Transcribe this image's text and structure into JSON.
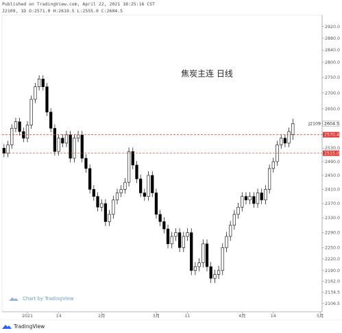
{
  "header": {
    "published": "Published on TradingView.com, April 22, 2021 18:25:16 CST",
    "ohlc_line": "J2109, 1D O:2571.0 H:2619.5 L:2555.0 C:2604.5"
  },
  "chart_data": {
    "type": "candlestick",
    "title": "焦炭主连 日线",
    "symbol": "J2109",
    "open": [
      2530,
      2515,
      2540,
      2590,
      2610,
      2580,
      2560,
      2600,
      2680,
      2720,
      2745,
      2720,
      2640,
      2590,
      2520,
      2560,
      2545,
      2570,
      2500,
      2560,
      2570,
      2500,
      2470,
      2410,
      2390,
      2360,
      2370,
      2320,
      2340,
      2380,
      2400,
      2410,
      2430,
      2520,
      2480,
      2440,
      2400,
      2390,
      2450,
      2400,
      2340,
      2320,
      2300,
      2260,
      2280,
      2290,
      2250,
      2280,
      2290,
      2190,
      2200,
      2210,
      2260,
      2200,
      2170,
      2180,
      2190,
      2250,
      2280,
      2310,
      2340,
      2360,
      2390,
      2380,
      2390,
      2370,
      2400,
      2380,
      2410,
      2470,
      2490,
      2540,
      2560,
      2545,
      2571
    ],
    "high": [
      2542,
      2552,
      2602,
      2622,
      2622,
      2592,
      2612,
      2692,
      2732,
      2757,
      2757,
      2732,
      2652,
      2602,
      2572,
      2572,
      2582,
      2582,
      2572,
      2582,
      2582,
      2512,
      2482,
      2422,
      2402,
      2382,
      2382,
      2352,
      2392,
      2412,
      2422,
      2442,
      2532,
      2532,
      2492,
      2452,
      2412,
      2462,
      2462,
      2412,
      2352,
      2332,
      2312,
      2292,
      2302,
      2302,
      2292,
      2302,
      2302,
      2212,
      2222,
      2272,
      2272,
      2212,
      2192,
      2202,
      2262,
      2292,
      2322,
      2352,
      2372,
      2402,
      2402,
      2402,
      2402,
      2412,
      2412,
      2422,
      2482,
      2502,
      2552,
      2572,
      2572,
      2592,
      2619.5
    ],
    "low": [
      2503,
      2503,
      2528,
      2578,
      2568,
      2548,
      2548,
      2588,
      2668,
      2708,
      2708,
      2628,
      2578,
      2508,
      2508,
      2533,
      2533,
      2488,
      2488,
      2548,
      2488,
      2458,
      2398,
      2378,
      2348,
      2348,
      2308,
      2308,
      2328,
      2368,
      2388,
      2398,
      2418,
      2468,
      2428,
      2388,
      2378,
      2378,
      2388,
      2328,
      2308,
      2288,
      2248,
      2248,
      2268,
      2238,
      2238,
      2268,
      2178,
      2178,
      2188,
      2198,
      2188,
      2158,
      2158,
      2168,
      2178,
      2238,
      2268,
      2298,
      2328,
      2348,
      2368,
      2368,
      2358,
      2358,
      2368,
      2368,
      2398,
      2458,
      2478,
      2528,
      2533,
      2533,
      2555
    ],
    "close": [
      2515,
      2540,
      2590,
      2610,
      2580,
      2560,
      2600,
      2680,
      2720,
      2745,
      2720,
      2640,
      2590,
      2520,
      2560,
      2545,
      2570,
      2500,
      2560,
      2570,
      2500,
      2470,
      2410,
      2390,
      2360,
      2370,
      2320,
      2340,
      2380,
      2400,
      2410,
      2430,
      2520,
      2480,
      2440,
      2400,
      2390,
      2450,
      2400,
      2340,
      2320,
      2300,
      2260,
      2280,
      2290,
      2250,
      2280,
      2290,
      2190,
      2200,
      2210,
      2260,
      2200,
      2170,
      2180,
      2190,
      2250,
      2280,
      2310,
      2340,
      2360,
      2390,
      2380,
      2390,
      2370,
      2400,
      2380,
      2410,
      2470,
      2490,
      2540,
      2560,
      2545,
      2580,
      2604.5
    ],
    "xlim": [
      -0.5,
      81.5
    ],
    "xticks": [
      {
        "value": 6,
        "label": "2021"
      },
      {
        "value": 14,
        "label": "14"
      },
      {
        "value": 25,
        "label": "2月"
      },
      {
        "value": 39,
        "label": "3月"
      },
      {
        "value": 47,
        "label": "11"
      },
      {
        "value": 61,
        "label": "4月"
      },
      {
        "value": 69,
        "label": "14"
      },
      {
        "value": 81,
        "label": "5月"
      }
    ],
    "ylim": [
      2086,
      2960
    ],
    "log_scale": true,
    "yticks": [
      {
        "value": 2920,
        "label": "2920.0"
      },
      {
        "value": 2880,
        "label": "2880.0"
      },
      {
        "value": 2840,
        "label": "2840.0"
      },
      {
        "value": 2800,
        "label": "2800.0"
      },
      {
        "value": 2750,
        "label": "2750.0"
      },
      {
        "value": 2700,
        "label": "2700.0"
      },
      {
        "value": 2650,
        "label": "2650.0"
      },
      {
        "value": 2530,
        "label": "2530.0"
      },
      {
        "value": 2490,
        "label": "2490.0"
      },
      {
        "value": 2450,
        "label": "2450.0"
      },
      {
        "value": 2410,
        "label": "2410.0"
      },
      {
        "value": 2370,
        "label": "2370.0"
      },
      {
        "value": 2330,
        "label": "2330.0"
      },
      {
        "value": 2290,
        "label": "2290.0"
      },
      {
        "value": 2250,
        "label": "2250.0"
      },
      {
        "value": 2220,
        "label": "2220.0"
      },
      {
        "value": 2190,
        "label": "2190.0"
      },
      {
        "value": 2162,
        "label": "2162.0"
      },
      {
        "value": 2134.5,
        "label": "2134.5"
      },
      {
        "value": 2106.5,
        "label": "2106.5"
      }
    ],
    "up_color": "#ffffff",
    "down_color": "#000000",
    "outline_color": "#000000",
    "price_lines": [
      {
        "value": 2570.4,
        "label": "2570.4",
        "color": "#e53935"
      },
      {
        "value": 2515.0,
        "label": "2515.0",
        "color": "#e53935"
      }
    ],
    "last_price": {
      "value": 2604.5,
      "label": "2604.5"
    }
  },
  "watermark": "Chart by TradingView",
  "footer": "TradingView"
}
